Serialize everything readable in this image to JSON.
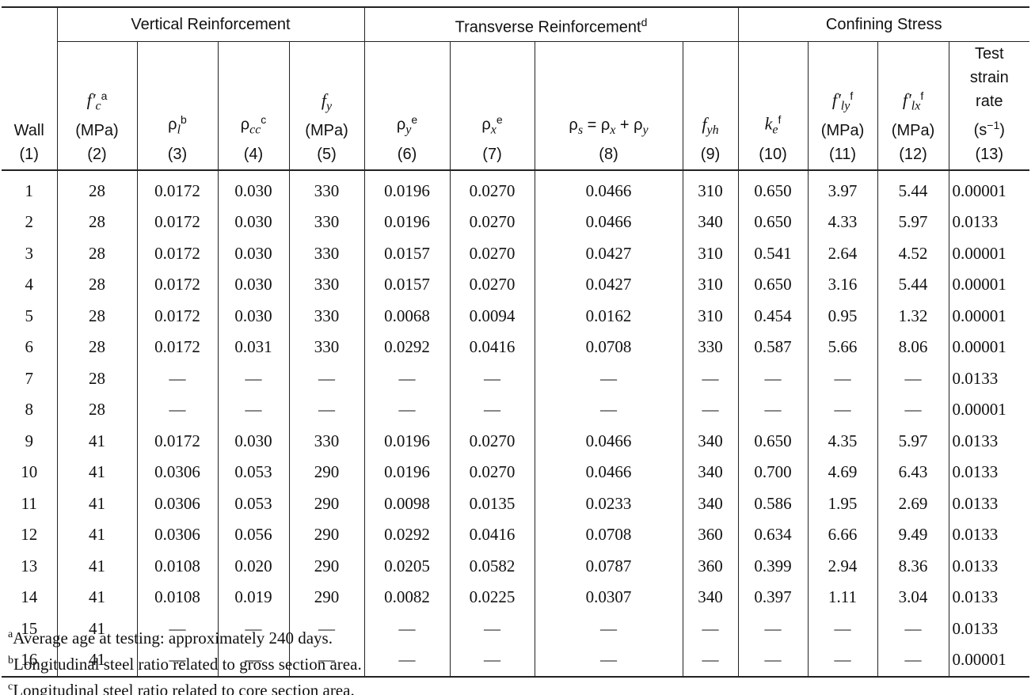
{
  "group_headers": [
    {
      "text": "Vertical Reinforcement"
    },
    {
      "text": "Transverse Reinforcement",
      "note": "d"
    },
    {
      "text": "Confining Stress"
    }
  ],
  "columns": [
    {
      "label": [
        {
          "text": "Wall"
        }
      ],
      "number": "(1)"
    },
    {
      "label": [
        {
          "text": "f′",
          "style": "italic"
        },
        {
          "text": "c",
          "style": "sub-italic"
        },
        {
          "text": "a",
          "style": "sup"
        }
      ],
      "unit": [
        {
          "text": "(MPa)"
        }
      ],
      "number": "(2)"
    },
    {
      "label": [
        {
          "text": "ρ"
        },
        {
          "text": "l",
          "style": "sub-italic"
        },
        {
          "text": "b",
          "style": "sup"
        }
      ],
      "number": "(3)"
    },
    {
      "label": [
        {
          "text": "ρ"
        },
        {
          "text": "cc",
          "style": "sub-italic"
        },
        {
          "text": "c",
          "style": "sup"
        }
      ],
      "number": "(4)"
    },
    {
      "label": [
        {
          "text": "f",
          "style": "italic"
        },
        {
          "text": "y",
          "style": "sub-italic"
        }
      ],
      "unit": [
        {
          "text": "(MPa)"
        }
      ],
      "number": "(5)"
    },
    {
      "label": [
        {
          "text": "ρ"
        },
        {
          "text": "y",
          "style": "sub-italic"
        },
        {
          "text": "e",
          "style": "sup"
        }
      ],
      "number": "(6)"
    },
    {
      "label": [
        {
          "text": "ρ"
        },
        {
          "text": "x",
          "style": "sub-italic"
        },
        {
          "text": "e",
          "style": "sup"
        }
      ],
      "number": "(7)"
    },
    {
      "label": [
        {
          "text": "ρ"
        },
        {
          "text": "s",
          "style": "sub-italic"
        },
        {
          "text": " = ρ"
        },
        {
          "text": "x",
          "style": "sub-italic"
        },
        {
          "text": " + ρ"
        },
        {
          "text": "y",
          "style": "sub-italic"
        }
      ],
      "number": "(8)"
    },
    {
      "label": [
        {
          "text": "f",
          "style": "italic"
        },
        {
          "text": "yh",
          "style": "sub-italic"
        }
      ],
      "number": "(9)"
    },
    {
      "label": [
        {
          "text": "k",
          "style": "italic"
        },
        {
          "text": "e",
          "style": "sub-italic"
        },
        {
          "text": "f",
          "style": "sup"
        }
      ],
      "number": "(10)"
    },
    {
      "label": [
        {
          "text": "f′",
          "style": "italic"
        },
        {
          "text": "ly",
          "style": "sub-italic"
        },
        {
          "text": "f",
          "style": "sup"
        }
      ],
      "unit": [
        {
          "text": "(MPa)"
        }
      ],
      "number": "(11)"
    },
    {
      "label": [
        {
          "text": "f′",
          "style": "italic"
        },
        {
          "text": "lx",
          "style": "sub-italic"
        },
        {
          "text": "f",
          "style": "sup"
        }
      ],
      "unit": [
        {
          "text": "(MPa)"
        }
      ],
      "number": "(12)"
    },
    {
      "label": [
        {
          "text": "Test strain rate"
        }
      ],
      "unit": [
        {
          "text": "(s"
        },
        {
          "text": "−1",
          "style": "sup"
        },
        {
          "text": ")"
        }
      ],
      "number": "(13)"
    }
  ],
  "rows": [
    [
      "1",
      "28",
      "0.0172",
      "0.030",
      "330",
      "0.0196",
      "0.0270",
      "0.0466",
      "310",
      "0.650",
      "3.97",
      "5.44",
      "0.00001"
    ],
    [
      "2",
      "28",
      "0.0172",
      "0.030",
      "330",
      "0.0196",
      "0.0270",
      "0.0466",
      "340",
      "0.650",
      "4.33",
      "5.97",
      "0.0133"
    ],
    [
      "3",
      "28",
      "0.0172",
      "0.030",
      "330",
      "0.0157",
      "0.0270",
      "0.0427",
      "310",
      "0.541",
      "2.64",
      "4.52",
      "0.00001"
    ],
    [
      "4",
      "28",
      "0.0172",
      "0.030",
      "330",
      "0.0157",
      "0.0270",
      "0.0427",
      "310",
      "0.650",
      "3.16",
      "5.44",
      "0.00001"
    ],
    [
      "5",
      "28",
      "0.0172",
      "0.030",
      "330",
      "0.0068",
      "0.0094",
      "0.0162",
      "310",
      "0.454",
      "0.95",
      "1.32",
      "0.00001"
    ],
    [
      "6",
      "28",
      "0.0172",
      "0.031",
      "330",
      "0.0292",
      "0.0416",
      "0.0708",
      "330",
      "0.587",
      "5.66",
      "8.06",
      "0.00001"
    ],
    [
      "7",
      "28",
      "—",
      "—",
      "—",
      "—",
      "—",
      "—",
      "—",
      "—",
      "—",
      "—",
      "0.0133"
    ],
    [
      "8",
      "28",
      "—",
      "—",
      "—",
      "—",
      "—",
      "—",
      "—",
      "—",
      "—",
      "—",
      "0.00001"
    ],
    [
      "9",
      "41",
      "0.0172",
      "0.030",
      "330",
      "0.0196",
      "0.0270",
      "0.0466",
      "340",
      "0.650",
      "4.35",
      "5.97",
      "0.0133"
    ],
    [
      "10",
      "41",
      "0.0306",
      "0.053",
      "290",
      "0.0196",
      "0.0270",
      "0.0466",
      "340",
      "0.700",
      "4.69",
      "6.43",
      "0.0133"
    ],
    [
      "11",
      "41",
      "0.0306",
      "0.053",
      "290",
      "0.0098",
      "0.0135",
      "0.0233",
      "340",
      "0.586",
      "1.95",
      "2.69",
      "0.0133"
    ],
    [
      "12",
      "41",
      "0.0306",
      "0.056",
      "290",
      "0.0292",
      "0.0416",
      "0.0708",
      "360",
      "0.634",
      "6.66",
      "9.49",
      "0.0133"
    ],
    [
      "13",
      "41",
      "0.0108",
      "0.020",
      "290",
      "0.0205",
      "0.0582",
      "0.0787",
      "360",
      "0.399",
      "2.94",
      "8.36",
      "0.0133"
    ],
    [
      "14",
      "41",
      "0.0108",
      "0.019",
      "290",
      "0.0082",
      "0.0225",
      "0.0307",
      "340",
      "0.397",
      "1.11",
      "3.04",
      "0.0133"
    ],
    [
      "15",
      "41",
      "—",
      "—",
      "—",
      "—",
      "—",
      "—",
      "—",
      "—",
      "—",
      "—",
      "0.0133"
    ],
    [
      "16",
      "41",
      "—",
      "—",
      "—",
      "—",
      "—",
      "—",
      "—",
      "—",
      "—",
      "—",
      "0.00001"
    ]
  ],
  "footnotes": [
    {
      "mark": "a",
      "text": "Average age at testing: approximately 240 days."
    },
    {
      "mark": "b",
      "text": "Longitudinal steel ratio related to gross section area."
    },
    {
      "mark": "c",
      "text": "Longitudinal steel ratio related to core section area."
    }
  ]
}
